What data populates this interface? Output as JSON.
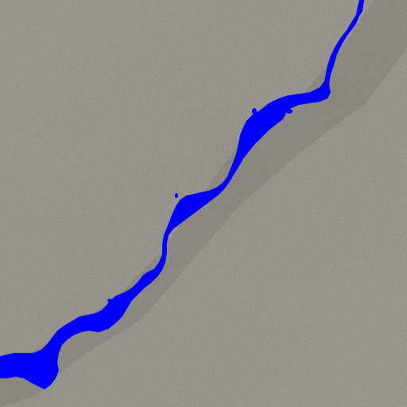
{
  "scene": {
    "surface": "concrete",
    "overlay": "crack-segmentation-mask"
  },
  "colors": {
    "concrete_base": "#8e8a84",
    "concrete_light": "#a7a39c",
    "concrete_dark": "#6f6a64",
    "mask": "#0000ff"
  }
}
